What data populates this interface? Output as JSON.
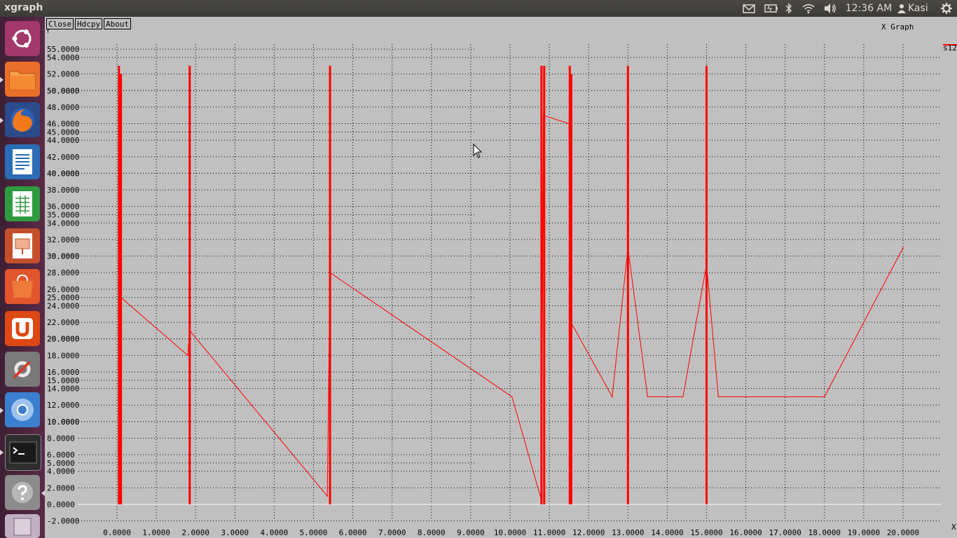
{
  "topbar": {
    "app_title": "xgraph",
    "clock": "12:36 AM",
    "user": "Kasi",
    "indicators": [
      "mail-icon",
      "battery-icon",
      "bluetooth-icon",
      "wifi-icon",
      "volume-icon",
      "settings-gear-icon"
    ]
  },
  "launcher": {
    "items": [
      {
        "name": "ubuntu-dash-icon",
        "color": "#a3386b"
      },
      {
        "name": "files-icon",
        "color": "#e96f2a"
      },
      {
        "name": "firefox-icon",
        "color": "#e66000"
      },
      {
        "name": "writer-icon",
        "color": "#2a6cb5"
      },
      {
        "name": "calc-icon",
        "color": "#2f9a3e"
      },
      {
        "name": "impress-icon",
        "color": "#c4502b"
      },
      {
        "name": "software-center-icon",
        "color": "#e2552d"
      },
      {
        "name": "ubuntu-one-icon",
        "color": "#dd4814"
      },
      {
        "name": "system-settings-icon",
        "color": "#9b9b9b"
      },
      {
        "name": "chromium-icon",
        "color": "#3c7fd0"
      },
      {
        "name": "terminal-icon",
        "color": "#2e2e2e"
      },
      {
        "name": "help-icon",
        "color": "#8c8c8c"
      }
    ]
  },
  "xgraph": {
    "buttons": {
      "close": "Close",
      "hardcopy": "Hdcpy",
      "about": "About"
    },
    "window_title": "X Graph",
    "x_axis_name": "X",
    "y_axis_name": "Y",
    "legend": "s12",
    "series_color": "#ff0000"
  },
  "chart_data": {
    "type": "line",
    "title": "X Graph",
    "xlabel": "X",
    "ylabel": "Y",
    "xlim": [
      0,
      20
    ],
    "ylim": [
      -2,
      55
    ],
    "grid": true,
    "legend_position": "top-right",
    "x_ticks": [
      "0.0000",
      "1.0000",
      "2.0000",
      "3.0000",
      "4.0000",
      "5.0000",
      "6.0000",
      "7.0000",
      "8.0000",
      "9.0000",
      "10.0000",
      "11.0000",
      "12.0000",
      "13.0000",
      "14.0000",
      "15.0000",
      "16.0000",
      "17.0000",
      "18.0000",
      "19.0000",
      "20.0000"
    ],
    "y_ticks": [
      "-2.0000",
      "0.0000",
      "2.0000",
      "4.0000",
      "6.0000",
      "8.0000",
      "10.0000",
      "12.0000",
      "14.0000",
      "16.0000",
      "18.0000",
      "20.0000",
      "22.0000",
      "24.0000",
      "26.0000",
      "28.0000",
      "30.0000",
      "32.0000",
      "34.0000",
      "36.0000",
      "38.0000",
      "40.0000",
      "42.0000",
      "44.0000",
      "46.0000",
      "48.0000",
      "50.0000",
      "52.0000",
      "54.0000"
    ],
    "y_ticks_alt": [
      "5.0000",
      "10.0000",
      "15.0000",
      "20.0000",
      "25.0000",
      "30.0000",
      "35.0000",
      "40.0000",
      "45.0000",
      "50.0000",
      "55.0000"
    ],
    "series": [
      {
        "name": "s12",
        "line": [
          [
            0.1,
            25
          ],
          [
            1.8,
            18
          ],
          [
            1.85,
            21
          ],
          [
            5.35,
            1
          ],
          [
            5.42,
            28
          ],
          [
            10.05,
            13
          ],
          [
            10.8,
            0.5
          ],
          [
            10.85,
            47
          ],
          [
            11.5,
            46
          ],
          [
            11.55,
            22
          ],
          [
            12.6,
            13
          ],
          [
            13.0,
            31
          ],
          [
            13.5,
            13
          ],
          [
            14.4,
            13
          ],
          [
            15.0,
            29
          ],
          [
            15.3,
            13
          ],
          [
            18.0,
            13
          ],
          [
            20.0,
            31
          ]
        ],
        "spikes": [
          {
            "x": 0.05,
            "y0": 0,
            "y1": 53
          },
          {
            "x": 0.1,
            "y0": 0,
            "y1": 52
          },
          {
            "x": 1.85,
            "y0": 0,
            "y1": 53
          },
          {
            "x": 5.42,
            "y0": 0,
            "y1": 53
          },
          {
            "x": 10.8,
            "y0": 0,
            "y1": 53
          },
          {
            "x": 10.87,
            "y0": 0,
            "y1": 53
          },
          {
            "x": 11.52,
            "y0": 0,
            "y1": 53
          },
          {
            "x": 11.56,
            "y0": 0,
            "y1": 52
          },
          {
            "x": 13.0,
            "y0": 0,
            "y1": 53
          },
          {
            "x": 15.0,
            "y0": 0,
            "y1": 53
          }
        ]
      }
    ]
  }
}
